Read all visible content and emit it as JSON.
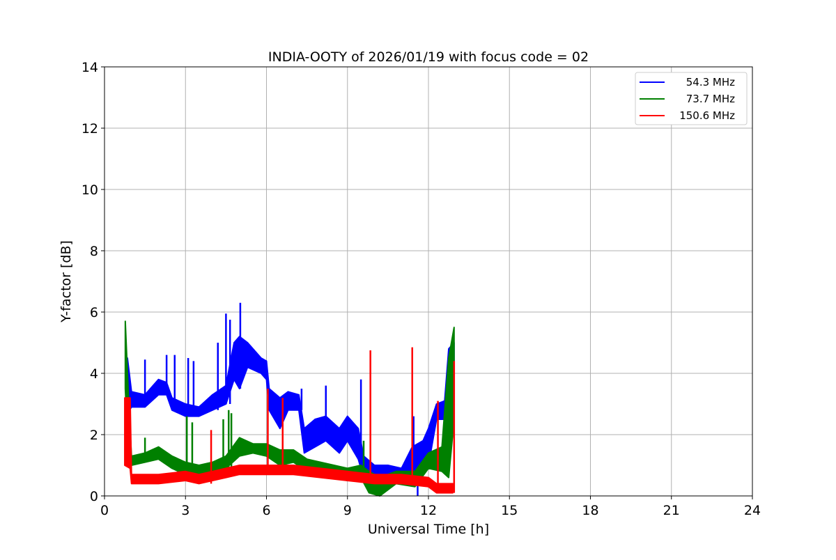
{
  "chart_data": {
    "type": "line",
    "title": "INDIA-OOTY of 2026/01/19 with focus code = 02",
    "xlabel": "Universal Time [h]",
    "ylabel": "Y-factor [dB]",
    "xlim": [
      0,
      24
    ],
    "ylim": [
      0,
      14
    ],
    "xticks": [
      0,
      3,
      6,
      9,
      12,
      15,
      18,
      21,
      24
    ],
    "yticks": [
      0,
      2,
      4,
      6,
      8,
      10,
      12,
      14
    ],
    "grid": true,
    "legend_position": "top-right",
    "series": [
      {
        "name": "54.3 MHz",
        "color": "#0000ff",
        "band": [
          [
            0.85,
            2.7,
            4.5
          ],
          [
            1.0,
            2.9,
            3.4
          ],
          [
            1.5,
            2.9,
            3.3
          ],
          [
            2.0,
            3.3,
            3.8
          ],
          [
            2.3,
            3.3,
            3.7
          ],
          [
            2.5,
            2.8,
            3.2
          ],
          [
            3.0,
            2.6,
            3.0
          ],
          [
            3.5,
            2.6,
            2.9
          ],
          [
            4.0,
            2.8,
            3.3
          ],
          [
            4.5,
            3.0,
            3.6
          ],
          [
            4.8,
            3.8,
            5.0
          ],
          [
            5.0,
            3.5,
            5.2
          ],
          [
            5.3,
            4.2,
            5.0
          ],
          [
            5.8,
            4.0,
            4.5
          ],
          [
            6.0,
            3.8,
            4.4
          ],
          [
            6.1,
            2.8,
            3.5
          ],
          [
            6.5,
            2.2,
            3.2
          ],
          [
            6.8,
            2.8,
            3.4
          ],
          [
            7.2,
            2.8,
            3.3
          ],
          [
            7.4,
            1.4,
            2.2
          ],
          [
            7.8,
            1.6,
            2.5
          ],
          [
            8.2,
            1.8,
            2.6
          ],
          [
            8.7,
            1.4,
            2.2
          ],
          [
            9.0,
            1.8,
            2.6
          ],
          [
            9.4,
            1.2,
            2.2
          ],
          [
            9.6,
            0.6,
            1.3
          ],
          [
            10.0,
            0.3,
            1.0
          ],
          [
            10.5,
            0.5,
            1.0
          ],
          [
            11.0,
            0.5,
            0.9
          ],
          [
            11.4,
            0.6,
            1.6
          ],
          [
            11.8,
            0.8,
            1.8
          ],
          [
            12.0,
            1.0,
            2.2
          ],
          [
            12.3,
            2.5,
            3.0
          ],
          [
            12.6,
            2.5,
            3.1
          ],
          [
            12.75,
            3.5,
            4.8
          ],
          [
            12.95,
            4.2,
            5.0
          ]
        ],
        "spikes": [
          [
            1.5,
            4.45
          ],
          [
            2.3,
            4.6
          ],
          [
            2.6,
            4.6
          ],
          [
            3.1,
            4.5
          ],
          [
            3.3,
            4.4
          ],
          [
            4.2,
            5.0
          ],
          [
            4.5,
            5.95
          ],
          [
            4.65,
            5.75
          ],
          [
            4.85,
            5.05
          ],
          [
            5.03,
            6.3
          ],
          [
            7.3,
            3.5
          ],
          [
            8.2,
            3.6
          ],
          [
            9.5,
            3.8
          ],
          [
            11.45,
            2.6
          ],
          [
            11.6,
            0.0
          ]
        ]
      },
      {
        "name": "73.7 MHz",
        "color": "#008000",
        "band": [
          [
            0.77,
            3.5,
            5.7
          ],
          [
            0.9,
            1.1,
            3.0
          ],
          [
            1.0,
            1.0,
            1.3
          ],
          [
            1.5,
            1.1,
            1.4
          ],
          [
            2.0,
            1.2,
            1.6
          ],
          [
            2.5,
            0.9,
            1.3
          ],
          [
            3.0,
            0.7,
            1.1
          ],
          [
            3.5,
            0.7,
            1.0
          ],
          [
            4.0,
            0.8,
            1.1
          ],
          [
            4.5,
            0.9,
            1.3
          ],
          [
            5.0,
            1.3,
            1.9
          ],
          [
            5.5,
            1.4,
            1.7
          ],
          [
            6.0,
            1.3,
            1.7
          ],
          [
            6.5,
            1.0,
            1.5
          ],
          [
            7.0,
            1.1,
            1.5
          ],
          [
            7.5,
            0.8,
            1.2
          ],
          [
            8.0,
            0.7,
            1.1
          ],
          [
            8.5,
            0.6,
            1.0
          ],
          [
            9.0,
            0.5,
            0.9
          ],
          [
            9.5,
            0.6,
            1.0
          ],
          [
            9.8,
            0.1,
            0.8
          ],
          [
            10.2,
            0.0,
            0.6
          ],
          [
            10.8,
            0.4,
            0.8
          ],
          [
            11.5,
            0.3,
            0.8
          ],
          [
            12.0,
            0.9,
            1.4
          ],
          [
            12.5,
            0.8,
            1.6
          ],
          [
            12.75,
            0.6,
            4.5
          ],
          [
            12.95,
            2.5,
            5.5
          ]
        ],
        "spikes": [
          [
            1.5,
            1.9
          ],
          [
            3.05,
            2.6
          ],
          [
            3.25,
            2.4
          ],
          [
            4.4,
            2.5
          ],
          [
            4.6,
            2.8
          ],
          [
            4.7,
            2.7
          ],
          [
            9.6,
            1.8
          ]
        ]
      },
      {
        "name": "150.6 MHz",
        "color": "#ff0000",
        "band": [
          [
            0.75,
            1.0,
            3.2
          ],
          [
            0.95,
            0.9,
            3.2
          ],
          [
            1.0,
            0.4,
            0.7
          ],
          [
            2.0,
            0.4,
            0.7
          ],
          [
            3.0,
            0.5,
            0.8
          ],
          [
            3.5,
            0.4,
            0.7
          ],
          [
            4.0,
            0.5,
            0.8
          ],
          [
            4.5,
            0.6,
            0.9
          ],
          [
            5.0,
            0.7,
            1.0
          ],
          [
            6.0,
            0.7,
            1.0
          ],
          [
            7.0,
            0.7,
            1.0
          ],
          [
            8.0,
            0.6,
            0.9
          ],
          [
            9.0,
            0.5,
            0.8
          ],
          [
            10.0,
            0.4,
            0.7
          ],
          [
            11.0,
            0.4,
            0.7
          ],
          [
            12.0,
            0.3,
            0.6
          ],
          [
            12.3,
            0.1,
            0.4
          ],
          [
            12.9,
            0.1,
            0.4
          ]
        ],
        "spikes": [
          [
            3.95,
            2.15
          ],
          [
            6.05,
            3.5
          ],
          [
            6.6,
            3.2
          ],
          [
            9.85,
            4.75
          ],
          [
            11.4,
            4.85
          ],
          [
            12.35,
            3.1
          ],
          [
            12.95,
            4.4
          ]
        ]
      }
    ]
  }
}
